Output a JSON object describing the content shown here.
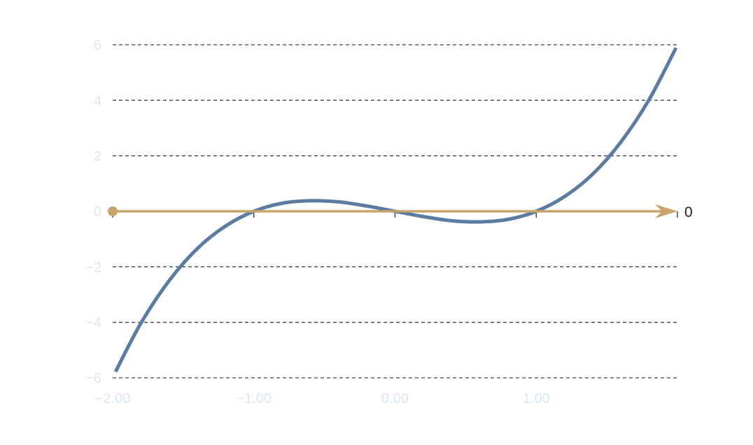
{
  "chart_data": {
    "type": "line",
    "title": "",
    "xlabel": "",
    "ylabel": "",
    "xlim": [
      -2.0,
      2.0
    ],
    "ylim": [
      -6,
      6
    ],
    "x_ticks": [
      -2.0,
      -1.0,
      0.0,
      1.0
    ],
    "x_tick_labels": [
      "−2.00",
      "−1.00",
      "0.00",
      "1.00"
    ],
    "y_ticks": [
      -6,
      -4,
      -2,
      0,
      2,
      4,
      6
    ],
    "y_tick_labels": [
      "−6",
      "−4",
      "−2",
      "0",
      "2",
      "4",
      "6"
    ],
    "grid": "horizontal dashed",
    "series": [
      {
        "name": "",
        "color": "#5b7ba0",
        "x": [
          -1.98,
          -1.8,
          -1.6,
          -1.4,
          -1.2,
          -1.0,
          -0.8,
          -0.6,
          -0.4,
          -0.2,
          0.0,
          0.2,
          0.4,
          0.6,
          0.8,
          1.0,
          1.2,
          1.4,
          1.6,
          1.8,
          1.99
        ],
        "y": [
          -5.78,
          -4.03,
          -2.5,
          -1.34,
          -0.53,
          0.0,
          0.29,
          0.38,
          0.34,
          0.19,
          0.0,
          -0.19,
          -0.34,
          -0.38,
          -0.29,
          0.0,
          0.53,
          1.34,
          2.5,
          4.03,
          5.89
        ]
      }
    ],
    "zero_line": {
      "y": 0,
      "x_start": -2.0,
      "x_end": 2.0,
      "color": "#c8a46a",
      "end_label": "0"
    },
    "colors": {
      "curve": "#5b7ba0",
      "zero_line": "#c8a46a",
      "grid": "#3a4556",
      "tick_label": "#dce6f2",
      "end_label": "#222222"
    }
  }
}
